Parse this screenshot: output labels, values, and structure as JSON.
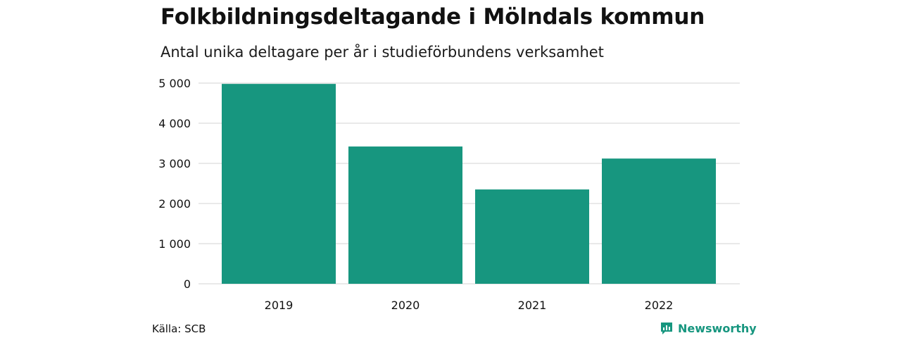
{
  "title": "Folkbildningsdeltagande i Mölndals kommun",
  "subtitle": "Antal unika deltagare per år i studieförbundens verksamhet",
  "source": "Källa: SCB",
  "brand": {
    "name": "Newsworthy",
    "icon": "newsworthy-logo-icon",
    "color": "#17967f"
  },
  "chart_data": {
    "type": "bar",
    "categories": [
      "2019",
      "2020",
      "2021",
      "2022"
    ],
    "values": [
      4980,
      3420,
      2350,
      3120
    ],
    "ylim": [
      0,
      5000
    ],
    "yticks": [
      0,
      1000,
      2000,
      3000,
      4000,
      5000
    ],
    "ytick_labels": [
      "0",
      "1 000",
      "2 000",
      "3 000",
      "4 000",
      "5 000"
    ],
    "xlabel": "",
    "ylabel": "",
    "grid": true,
    "bar_color": "#17967f"
  }
}
